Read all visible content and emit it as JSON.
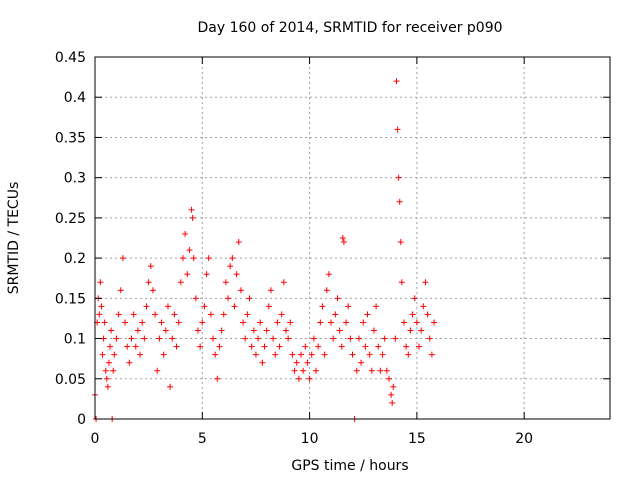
{
  "chart_data": {
    "type": "scatter",
    "title": "Day 160 of 2014, SRMTID for receiver p090",
    "xlabel": "GPS time / hours",
    "ylabel": "SRMTID / TECUs",
    "xlim": [
      0,
      24
    ],
    "ylim": [
      0,
      0.45
    ],
    "xticks": [
      0,
      5,
      10,
      15,
      20
    ],
    "xtick_labels": [
      "0",
      "5",
      "10",
      "15",
      "20"
    ],
    "yticks": [
      0,
      0.05,
      0.1,
      0.15,
      0.2,
      0.25,
      0.3,
      0.35,
      0.4,
      0.45
    ],
    "ytick_labels": [
      "0",
      "0.05",
      "0.1",
      "0.15",
      "0.2",
      "0.25",
      "0.3",
      "0.35",
      "0.4",
      "0.45"
    ],
    "grid": true,
    "marker": "+",
    "series": [
      {
        "name": "SRMTID",
        "color": "#ff0000",
        "points": [
          [
            0.0,
            0.03
          ],
          [
            0.05,
            0.0
          ],
          [
            0.1,
            0.12
          ],
          [
            0.15,
            0.15
          ],
          [
            0.2,
            0.13
          ],
          [
            0.25,
            0.17
          ],
          [
            0.3,
            0.14
          ],
          [
            0.35,
            0.08
          ],
          [
            0.4,
            0.1
          ],
          [
            0.45,
            0.12
          ],
          [
            0.5,
            0.06
          ],
          [
            0.55,
            0.05
          ],
          [
            0.6,
            0.04
          ],
          [
            0.65,
            0.07
          ],
          [
            0.7,
            0.09
          ],
          [
            0.75,
            0.11
          ],
          [
            0.8,
            0.0
          ],
          [
            0.85,
            0.06
          ],
          [
            0.9,
            0.08
          ],
          [
            1.0,
            0.1
          ],
          [
            1.1,
            0.13
          ],
          [
            1.2,
            0.16
          ],
          [
            1.3,
            0.2
          ],
          [
            1.4,
            0.12
          ],
          [
            1.5,
            0.09
          ],
          [
            1.6,
            0.07
          ],
          [
            1.7,
            0.1
          ],
          [
            1.8,
            0.13
          ],
          [
            1.9,
            0.09
          ],
          [
            2.0,
            0.11
          ],
          [
            2.1,
            0.08
          ],
          [
            2.2,
            0.12
          ],
          [
            2.3,
            0.1
          ],
          [
            2.4,
            0.14
          ],
          [
            2.5,
            0.17
          ],
          [
            2.6,
            0.19
          ],
          [
            2.7,
            0.16
          ],
          [
            2.8,
            0.13
          ],
          [
            2.9,
            0.06
          ],
          [
            3.0,
            0.1
          ],
          [
            3.1,
            0.12
          ],
          [
            3.2,
            0.08
          ],
          [
            3.3,
            0.11
          ],
          [
            3.4,
            0.14
          ],
          [
            3.5,
            0.04
          ],
          [
            3.6,
            0.1
          ],
          [
            3.7,
            0.13
          ],
          [
            3.8,
            0.09
          ],
          [
            3.9,
            0.12
          ],
          [
            4.0,
            0.17
          ],
          [
            4.1,
            0.2
          ],
          [
            4.2,
            0.23
          ],
          [
            4.3,
            0.18
          ],
          [
            4.4,
            0.21
          ],
          [
            4.5,
            0.26
          ],
          [
            4.55,
            0.25
          ],
          [
            4.6,
            0.2
          ],
          [
            4.7,
            0.15
          ],
          [
            4.8,
            0.11
          ],
          [
            4.9,
            0.09
          ],
          [
            5.0,
            0.12
          ],
          [
            5.1,
            0.14
          ],
          [
            5.2,
            0.18
          ],
          [
            5.3,
            0.2
          ],
          [
            5.4,
            0.13
          ],
          [
            5.5,
            0.1
          ],
          [
            5.6,
            0.08
          ],
          [
            5.7,
            0.05
          ],
          [
            5.8,
            0.09
          ],
          [
            5.9,
            0.11
          ],
          [
            6.0,
            0.13
          ],
          [
            6.1,
            0.17
          ],
          [
            6.2,
            0.15
          ],
          [
            6.3,
            0.19
          ],
          [
            6.4,
            0.2
          ],
          [
            6.5,
            0.14
          ],
          [
            6.6,
            0.18
          ],
          [
            6.7,
            0.22
          ],
          [
            6.8,
            0.16
          ],
          [
            6.9,
            0.12
          ],
          [
            7.0,
            0.1
          ],
          [
            7.1,
            0.13
          ],
          [
            7.2,
            0.15
          ],
          [
            7.3,
            0.09
          ],
          [
            7.4,
            0.11
          ],
          [
            7.5,
            0.08
          ],
          [
            7.6,
            0.1
          ],
          [
            7.7,
            0.12
          ],
          [
            7.8,
            0.07
          ],
          [
            7.9,
            0.09
          ],
          [
            8.0,
            0.11
          ],
          [
            8.1,
            0.14
          ],
          [
            8.2,
            0.16
          ],
          [
            8.3,
            0.1
          ],
          [
            8.4,
            0.08
          ],
          [
            8.5,
            0.12
          ],
          [
            8.6,
            0.09
          ],
          [
            8.7,
            0.13
          ],
          [
            8.8,
            0.17
          ],
          [
            8.9,
            0.11
          ],
          [
            9.0,
            0.1
          ],
          [
            9.1,
            0.12
          ],
          [
            9.2,
            0.08
          ],
          [
            9.3,
            0.06
          ],
          [
            9.4,
            0.07
          ],
          [
            9.5,
            0.05
          ],
          [
            9.6,
            0.08
          ],
          [
            9.7,
            0.06
          ],
          [
            9.8,
            0.09
          ],
          [
            9.9,
            0.07
          ],
          [
            10.0,
            0.05
          ],
          [
            10.1,
            0.08
          ],
          [
            10.2,
            0.1
          ],
          [
            10.3,
            0.06
          ],
          [
            10.4,
            0.09
          ],
          [
            10.5,
            0.12
          ],
          [
            10.6,
            0.14
          ],
          [
            10.7,
            0.08
          ],
          [
            10.8,
            0.16
          ],
          [
            10.9,
            0.18
          ],
          [
            11.0,
            0.12
          ],
          [
            11.1,
            0.1
          ],
          [
            11.2,
            0.13
          ],
          [
            11.3,
            0.15
          ],
          [
            11.4,
            0.11
          ],
          [
            11.5,
            0.09
          ],
          [
            11.55,
            0.225
          ],
          [
            11.6,
            0.22
          ],
          [
            11.7,
            0.12
          ],
          [
            11.8,
            0.14
          ],
          [
            11.9,
            0.1
          ],
          [
            12.0,
            0.08
          ],
          [
            12.1,
            0.0
          ],
          [
            12.2,
            0.06
          ],
          [
            12.3,
            0.1
          ],
          [
            12.4,
            0.07
          ],
          [
            12.5,
            0.12
          ],
          [
            12.6,
            0.09
          ],
          [
            12.7,
            0.13
          ],
          [
            12.8,
            0.08
          ],
          [
            12.9,
            0.06
          ],
          [
            13.0,
            0.11
          ],
          [
            13.1,
            0.14
          ],
          [
            13.2,
            0.09
          ],
          [
            13.3,
            0.06
          ],
          [
            13.4,
            0.08
          ],
          [
            13.5,
            0.1
          ],
          [
            13.6,
            0.06
          ],
          [
            13.7,
            0.05
          ],
          [
            13.8,
            0.03
          ],
          [
            13.85,
            0.02
          ],
          [
            13.9,
            0.04
          ],
          [
            14.0,
            0.1
          ],
          [
            14.05,
            0.42
          ],
          [
            14.1,
            0.36
          ],
          [
            14.15,
            0.3
          ],
          [
            14.2,
            0.27
          ],
          [
            14.25,
            0.22
          ],
          [
            14.3,
            0.17
          ],
          [
            14.4,
            0.12
          ],
          [
            14.5,
            0.09
          ],
          [
            14.6,
            0.08
          ],
          [
            14.7,
            0.11
          ],
          [
            14.8,
            0.13
          ],
          [
            14.9,
            0.15
          ],
          [
            15.0,
            0.12
          ],
          [
            15.1,
            0.09
          ],
          [
            15.2,
            0.11
          ],
          [
            15.3,
            0.14
          ],
          [
            15.4,
            0.17
          ],
          [
            15.5,
            0.13
          ],
          [
            15.6,
            0.1
          ],
          [
            15.7,
            0.08
          ],
          [
            15.8,
            0.12
          ]
        ]
      }
    ]
  }
}
